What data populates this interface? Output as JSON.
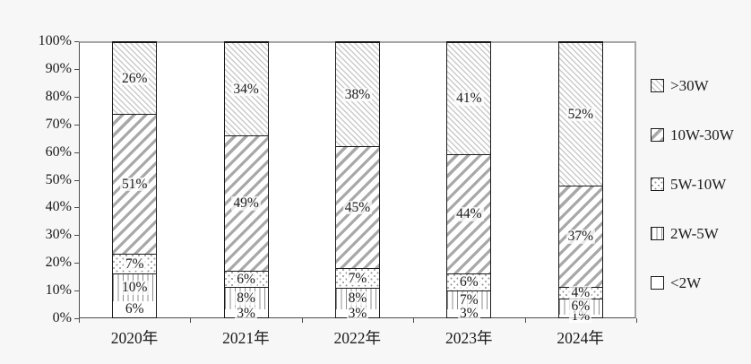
{
  "chart_data": {
    "type": "bar",
    "stacked": true,
    "percent_stacked": true,
    "title": "",
    "xlabel": "",
    "ylabel": "",
    "categories": [
      "2020年",
      "2021年",
      "2022年",
      "2023年",
      "2024年"
    ],
    "series": [
      {
        "name": "<2W",
        "pattern": "plain",
        "values": [
          6,
          3,
          3,
          3,
          1
        ]
      },
      {
        "name": "2W-5W",
        "pattern": "vlines",
        "values": [
          10,
          8,
          8,
          7,
          6
        ]
      },
      {
        "name": "5W-10W",
        "pattern": "dots",
        "values": [
          7,
          6,
          7,
          6,
          4
        ]
      },
      {
        "name": "10W-30W",
        "pattern": "slash",
        "values": [
          51,
          49,
          45,
          44,
          37
        ]
      },
      {
        "name": ">30W",
        "pattern": "backslash",
        "values": [
          26,
          34,
          38,
          41,
          52
        ]
      }
    ],
    "value_suffix": "%",
    "y_ticks": [
      "100%",
      "90%",
      "80%",
      "70%",
      "60%",
      "50%",
      "40%",
      "30%",
      "20%",
      "10%",
      "0%"
    ],
    "ylim": [
      0,
      100
    ],
    "grid": false,
    "legend_position": "right",
    "legend": [
      {
        "label": ">30W",
        "pattern": "backslash"
      },
      {
        "label": "10W-30W",
        "pattern": "slash"
      },
      {
        "label": "5W-10W",
        "pattern": "dots"
      },
      {
        "label": "2W-5W",
        "pattern": "vlines"
      },
      {
        "label": "<2W",
        "pattern": "plain"
      }
    ]
  },
  "colors": {
    "page_bg": "#f6f7f6",
    "plot_bg": "#ffffff",
    "bar_border": "#1a1a1a",
    "frame_light": "#a6a6a6",
    "axis_dark": "#4d4d4d",
    "hatch_light": "#cacaca",
    "hatch_medium": "#a8a8a8",
    "text": "#1a1a1a"
  }
}
